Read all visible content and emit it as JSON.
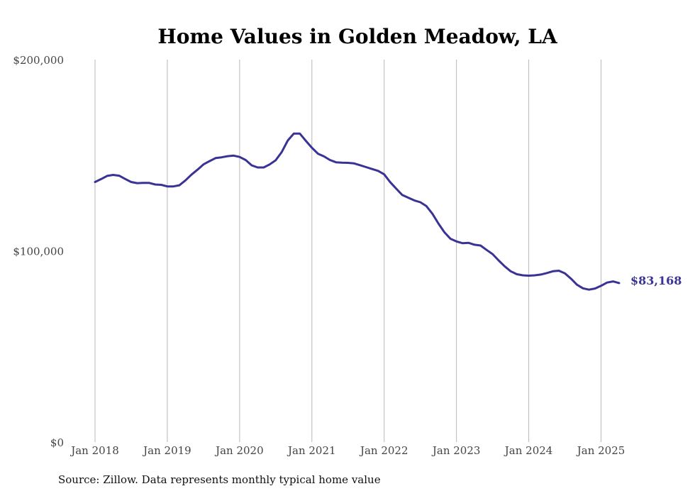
{
  "chart_data": {
    "type": "line",
    "title": "Home Values in Golden Meadow, LA",
    "xlabel": "",
    "ylabel": "",
    "ylim": [
      0,
      200000
    ],
    "y_ticks": [
      "$0",
      "$100,000",
      "$200,000"
    ],
    "y_tick_values": [
      0,
      100000,
      200000
    ],
    "x_ticks": [
      "Jan 2018",
      "Jan 2019",
      "Jan 2020",
      "Jan 2021",
      "Jan 2022",
      "Jan 2023",
      "Jan 2024",
      "Jan 2025"
    ],
    "x_tick_values": [
      "2018-01",
      "2019-01",
      "2020-01",
      "2021-01",
      "2022-01",
      "2023-01",
      "2024-01",
      "2025-01"
    ],
    "grid": "vertical",
    "series": [
      {
        "color": "#3a3396",
        "end_label": "$83,168",
        "points": [
          [
            "2018-01",
            136000
          ],
          [
            "2018-02",
            137500
          ],
          [
            "2018-03",
            139200
          ],
          [
            "2018-04",
            139700
          ],
          [
            "2018-05",
            139300
          ],
          [
            "2018-06",
            137600
          ],
          [
            "2018-07",
            136000
          ],
          [
            "2018-08",
            135400
          ],
          [
            "2018-09",
            135500
          ],
          [
            "2018-10",
            135500
          ],
          [
            "2018-11",
            134700
          ],
          [
            "2018-12",
            134500
          ],
          [
            "2019-01",
            133700
          ],
          [
            "2019-02",
            133700
          ],
          [
            "2019-03",
            134300
          ],
          [
            "2019-04",
            136800
          ],
          [
            "2019-05",
            139800
          ],
          [
            "2019-06",
            142400
          ],
          [
            "2019-07",
            145200
          ],
          [
            "2019-08",
            146900
          ],
          [
            "2019-09",
            148500
          ],
          [
            "2019-10",
            148900
          ],
          [
            "2019-11",
            149500
          ],
          [
            "2019-12",
            149800
          ],
          [
            "2020-01",
            149100
          ],
          [
            "2020-02",
            147500
          ],
          [
            "2020-03",
            144700
          ],
          [
            "2020-04",
            143600
          ],
          [
            "2020-05",
            143600
          ],
          [
            "2020-06",
            145200
          ],
          [
            "2020-07",
            147400
          ],
          [
            "2020-08",
            151700
          ],
          [
            "2020-09",
            157700
          ],
          [
            "2020-10",
            161300
          ],
          [
            "2020-11",
            161300
          ],
          [
            "2020-12",
            157500
          ],
          [
            "2021-01",
            153900
          ],
          [
            "2021-02",
            150800
          ],
          [
            "2021-03",
            149400
          ],
          [
            "2021-04",
            147500
          ],
          [
            "2021-05",
            146300
          ],
          [
            "2021-06",
            146100
          ],
          [
            "2021-07",
            146000
          ],
          [
            "2021-08",
            145700
          ],
          [
            "2021-09",
            144800
          ],
          [
            "2021-10",
            143800
          ],
          [
            "2021-11",
            142800
          ],
          [
            "2021-12",
            141800
          ],
          [
            "2022-01",
            140000
          ],
          [
            "2022-02",
            135900
          ],
          [
            "2022-03",
            132500
          ],
          [
            "2022-04",
            129200
          ],
          [
            "2022-05",
            127800
          ],
          [
            "2022-06",
            126400
          ],
          [
            "2022-07",
            125400
          ],
          [
            "2022-08",
            123400
          ],
          [
            "2022-09",
            119400
          ],
          [
            "2022-10",
            114300
          ],
          [
            "2022-11",
            109700
          ],
          [
            "2022-12",
            106300
          ],
          [
            "2023-01",
            104900
          ],
          [
            "2023-02",
            104000
          ],
          [
            "2023-03",
            104200
          ],
          [
            "2023-04",
            103200
          ],
          [
            "2023-05",
            102800
          ],
          [
            "2023-06",
            100500
          ],
          [
            "2023-07",
            98300
          ],
          [
            "2023-08",
            95000
          ],
          [
            "2023-09",
            91900
          ],
          [
            "2023-10",
            89300
          ],
          [
            "2023-11",
            87800
          ],
          [
            "2023-12",
            87200
          ],
          [
            "2024-01",
            87000
          ],
          [
            "2024-02",
            87200
          ],
          [
            "2024-03",
            87600
          ],
          [
            "2024-04",
            88400
          ],
          [
            "2024-05",
            89300
          ],
          [
            "2024-06",
            89600
          ],
          [
            "2024-07",
            88200
          ],
          [
            "2024-08",
            85500
          ],
          [
            "2024-09",
            82300
          ],
          [
            "2024-10",
            80400
          ],
          [
            "2024-11",
            79700
          ],
          [
            "2024-12",
            80300
          ],
          [
            "2025-01",
            81700
          ],
          [
            "2025-02",
            83400
          ],
          [
            "2025-03",
            84000
          ],
          [
            "2025-04",
            83168
          ]
        ]
      }
    ]
  },
  "source_text": "Source: Zillow. Data represents monthly typical home value"
}
